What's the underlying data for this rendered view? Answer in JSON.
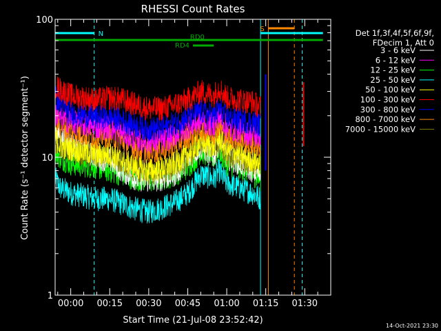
{
  "chart_data": {
    "type": "line",
    "title": "RHESSI Count Rates",
    "xlabel": "Start Time (21-Jul-08 23:52:42)",
    "ylabel": "Count Rate (s⁻¹ detector segment⁻¹)",
    "yscale": "log",
    "ylim": [
      1,
      100
    ],
    "xlim_minutes": [
      -6,
      100
    ],
    "x_ticks": [
      {
        "label": "00:00",
        "minutes": 0
      },
      {
        "label": "00:15",
        "minutes": 15
      },
      {
        "label": "00:30",
        "minutes": 30
      },
      {
        "label": "00:45",
        "minutes": 45
      },
      {
        "label": "01:00",
        "minutes": 60
      },
      {
        "label": "01:15",
        "minutes": 75
      },
      {
        "label": "01:30",
        "minutes": 90
      }
    ],
    "y_ticks": [
      {
        "label": "1",
        "value": 1
      },
      {
        "label": "10",
        "value": 10
      },
      {
        "label": "100",
        "value": 100
      }
    ],
    "legend_position": "right",
    "legend_header": [
      "Det 1f,3f,4f,5f,6f,9f,",
      "FDecim 1, Att 0"
    ],
    "series": [
      {
        "name": "3 - 6 keV",
        "color": "#ffffff",
        "x": [
          -6,
          -4,
          0,
          10,
          15,
          20,
          25,
          30,
          35,
          40,
          45,
          50,
          55,
          57,
          60,
          65,
          70,
          73
        ],
        "y": [
          16,
          14,
          12.5,
          10,
          9.5,
          8,
          7,
          6.8,
          7,
          7.5,
          9.5,
          12,
          10,
          13,
          10,
          9,
          8,
          7.5
        ]
      },
      {
        "name": "6 - 12 keV",
        "color": "#ff00ff",
        "x": [
          -6,
          -4,
          0,
          10,
          15,
          20,
          25,
          30,
          35,
          40,
          45,
          50,
          55,
          57,
          60,
          65,
          70,
          73
        ],
        "y": [
          21,
          19,
          18,
          16.5,
          16.5,
          15,
          13.5,
          13,
          13,
          14.5,
          16.5,
          18.5,
          17,
          20,
          16.5,
          15.5,
          14.5,
          14
        ]
      },
      {
        "name": "12 - 25 keV",
        "color": "#00ff00",
        "x": [
          -6,
          -4,
          0,
          10,
          15,
          20,
          25,
          30,
          35,
          40,
          45,
          50,
          55,
          57,
          60,
          65,
          70,
          73
        ],
        "y": [
          11,
          10,
          9,
          8.5,
          8,
          7.5,
          7,
          6.8,
          7,
          7.5,
          8.5,
          11,
          10,
          11.5,
          9,
          8.5,
          7.5,
          7
        ]
      },
      {
        "name": "25 - 50 keV",
        "color": "#00ffff",
        "x": [
          -6,
          -4,
          0,
          10,
          15,
          20,
          25,
          30,
          35,
          40,
          45,
          50,
          55,
          57,
          60,
          65,
          70,
          73
        ],
        "y": [
          7,
          6,
          5.5,
          5,
          5,
          4.6,
          4.2,
          4,
          4.3,
          4.7,
          5.5,
          7.5,
          7,
          8,
          6.5,
          6,
          5.5,
          5
        ]
      },
      {
        "name": "50 - 100 keV",
        "color": "#ffff00",
        "x": [
          -6,
          -4,
          0,
          10,
          15,
          20,
          25,
          30,
          35,
          40,
          45,
          50,
          55,
          57,
          60,
          65,
          70,
          73
        ],
        "y": [
          14,
          12,
          11.5,
          10.5,
          10.5,
          9.5,
          8.5,
          8,
          8.3,
          9,
          10.5,
          13,
          12,
          14,
          11.5,
          10.5,
          9.5,
          9
        ]
      },
      {
        "name": "100 - 300 keV",
        "color": "#ff0000",
        "x": [
          -6,
          -4,
          0,
          10,
          15,
          20,
          25,
          30,
          35,
          40,
          45,
          50,
          55,
          57,
          60,
          65,
          70,
          73
        ],
        "y": [
          33,
          31,
          28,
          26,
          27,
          26,
          24,
          22.5,
          22.5,
          24,
          26,
          30,
          28,
          32,
          27,
          26,
          25,
          23
        ]
      },
      {
        "name": "300 - 800 keV",
        "color": "#0000ff",
        "x": [
          -6,
          -4,
          0,
          10,
          15,
          20,
          25,
          30,
          35,
          40,
          45,
          50,
          55,
          57,
          60,
          65,
          70,
          73
        ],
        "y": [
          28,
          24,
          21,
          19.5,
          19.5,
          18.5,
          17,
          16,
          16.3,
          17.5,
          19.5,
          21.5,
          20,
          22.5,
          19.5,
          18.5,
          18,
          17
        ]
      },
      {
        "name": "800 - 7000 keV",
        "color": "#ff8800",
        "x": [
          -6,
          -4,
          0,
          10,
          15,
          20,
          25,
          30,
          35,
          40,
          45,
          50,
          55,
          57,
          60,
          65,
          70,
          73
        ],
        "y": [
          19,
          17,
          15.5,
          14,
          14.5,
          13,
          11.5,
          11,
          11.3,
          12.5,
          14,
          16,
          15,
          17,
          14.5,
          13.5,
          12.5,
          12
        ]
      },
      {
        "name": "7000 - 15000 keV",
        "color": "#808000",
        "x": [
          -6,
          -4,
          0,
          10,
          15,
          20,
          25,
          30,
          35,
          40,
          45,
          50,
          55,
          57,
          60,
          65,
          70,
          73
        ],
        "y": [
          13,
          12,
          11,
          10,
          10,
          9,
          8,
          7.5,
          7.8,
          8.5,
          10,
          12.5,
          11.5,
          13,
          10.5,
          9.5,
          9,
          8.5
        ]
      }
    ],
    "flag_bars": [
      {
        "label": "N",
        "color": "#00ffff",
        "x_start": -6,
        "x_end": 9,
        "level": "top",
        "labeled": true
      },
      {
        "label": "N",
        "color": "#00ffff",
        "x_start": 73,
        "x_end": 97,
        "level": "top",
        "labeled": false
      },
      {
        "label": "S",
        "color": "#ff8800",
        "x_start": 76,
        "x_end": 86,
        "level": "upper",
        "labeled": true
      },
      {
        "label": "RD0",
        "color": "#00aa00",
        "x_start": -6,
        "x_end": 97,
        "level": "middle",
        "labeled": true
      },
      {
        "label": "RD4",
        "color": "#00aa00",
        "x_start": 47,
        "x_end": 55,
        "level": "lower",
        "labeled": true
      }
    ],
    "vertical_markers": [
      {
        "x": -6,
        "color": "#00ffff",
        "style": "solid"
      },
      {
        "x": 9,
        "color": "#00ffff",
        "style": "dashed"
      },
      {
        "x": 73,
        "color": "#00ffff",
        "style": "solid"
      },
      {
        "x": 76,
        "color": "#ff8800",
        "style": "solid"
      },
      {
        "x": 86,
        "color": "#ff8800",
        "style": "dashed"
      },
      {
        "x": 89,
        "color": "#00ffff",
        "style": "dashed"
      }
    ],
    "spikes": [
      {
        "x": 75,
        "y_low": 8,
        "y_high": 40,
        "color": "#0000ff"
      },
      {
        "x": 89.5,
        "y_low": 12,
        "y_high": 35,
        "color": "#ff0000"
      }
    ]
  },
  "footer": {
    "timestamp": "14-Oct-2021 23:30"
  }
}
